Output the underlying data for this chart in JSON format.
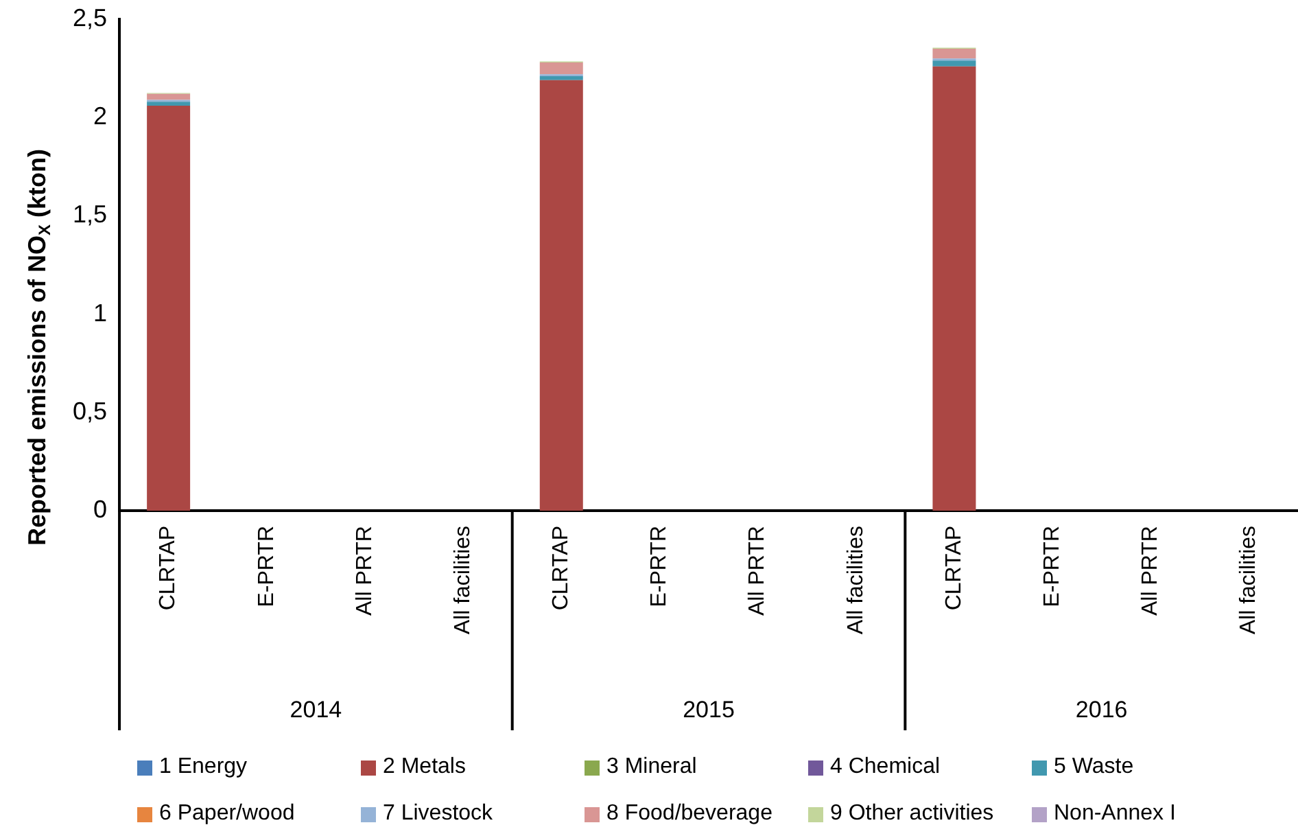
{
  "chart_data": {
    "type": "bar",
    "stacked": true,
    "ylabel": "Reported emissions of NO$_{X}$ (kton)",
    "categories": [
      "CLRTAP",
      "E-PRTR",
      "All PRTR",
      "All facilities",
      "CLRTAP",
      "E-PRTR",
      "All PRTR",
      "All facilities",
      "CLRTAP",
      "E-PRTR",
      "All PRTR",
      "All facilities"
    ],
    "annotations": [
      "2014",
      "2015",
      "2016"
    ],
    "ylim": [
      0,
      2.5
    ],
    "yticks": [
      0,
      {
        "value": 0.5,
        "label": "0,5"
      },
      1,
      {
        "value": 1.5,
        "label": "1,5"
      },
      2,
      {
        "value": 2.5,
        "label": "2,5"
      }
    ],
    "grid": false,
    "legend": "bottom",
    "series": [
      {
        "name": "1 Energy",
        "color": "#4a7ebb",
        "values": [
          0,
          null,
          null,
          null,
          0,
          null,
          null,
          null,
          0,
          null,
          null,
          null
        ]
      },
      {
        "name": "2 Metals",
        "color": "#ab4744",
        "values": [
          2.06,
          null,
          null,
          null,
          2.19,
          null,
          null,
          null,
          2.26,
          null,
          null,
          null
        ]
      },
      {
        "name": "3 Mineral",
        "color": "#8aa84e",
        "values": [
          0,
          null,
          null,
          null,
          0,
          null,
          null,
          null,
          0,
          null,
          null,
          null
        ]
      },
      {
        "name": "4 Chemical",
        "color": "#71589a",
        "values": [
          0,
          null,
          null,
          null,
          0,
          null,
          null,
          null,
          0,
          null,
          null,
          null
        ]
      },
      {
        "name": "5 Waste",
        "color": "#4198af",
        "values": [
          0.02,
          null,
          null,
          null,
          0.02,
          null,
          null,
          null,
          0.03,
          null,
          null,
          null
        ]
      },
      {
        "name": "6 Paper/wood",
        "color": "#e7853f",
        "values": [
          0,
          null,
          null,
          null,
          0,
          null,
          null,
          null,
          0,
          null,
          null,
          null
        ]
      },
      {
        "name": "7 Livestock",
        "color": "#95b3d7",
        "values": [
          0.01,
          null,
          null,
          null,
          0.01,
          null,
          null,
          null,
          0.01,
          null,
          null,
          null
        ]
      },
      {
        "name": "8 Food/beverage",
        "color": "#d99694",
        "values": [
          0.03,
          null,
          null,
          null,
          0.06,
          null,
          null,
          null,
          0.05,
          null,
          null,
          null
        ]
      },
      {
        "name": "9 Other activities",
        "color": "#c3d69b",
        "values": [
          0.005,
          null,
          null,
          null,
          0.005,
          null,
          null,
          null,
          0.005,
          null,
          null,
          null
        ]
      },
      {
        "name": "Non-Annex I",
        "color": "#b3a2c7",
        "values": [
          0,
          null,
          null,
          null,
          0,
          null,
          null,
          null,
          0,
          null,
          null,
          null
        ]
      }
    ]
  }
}
